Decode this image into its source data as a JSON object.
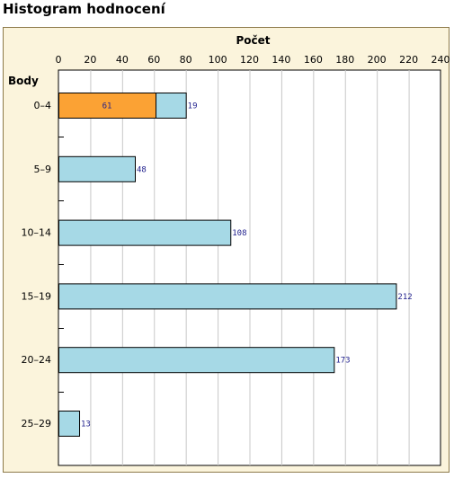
{
  "page_title": "Histogram hodnocení",
  "chart_data": {
    "type": "bar",
    "orientation": "horizontal",
    "stacked": true,
    "xlabel": "Počet",
    "ylabel": "Body",
    "xlim": [
      0,
      240
    ],
    "x_ticks": [
      0,
      20,
      40,
      60,
      80,
      100,
      120,
      140,
      160,
      180,
      200,
      220,
      240
    ],
    "categories": [
      "0–4",
      "5–9",
      "10–14",
      "15–19",
      "20–24",
      "25–29"
    ],
    "series": [
      {
        "values": [
          61,
          0,
          0,
          0,
          0,
          0
        ],
        "color": "#fba234"
      },
      {
        "values": [
          19,
          48,
          108,
          212,
          173,
          13
        ],
        "color": "#a6d9e6"
      }
    ],
    "grid": "vertical",
    "colors": {
      "background": "#fbf4dc",
      "plot_background": "#ffffff",
      "grid": "#c8c8c8",
      "label": "#1e1e8c",
      "bar_border": "#000000"
    }
  }
}
